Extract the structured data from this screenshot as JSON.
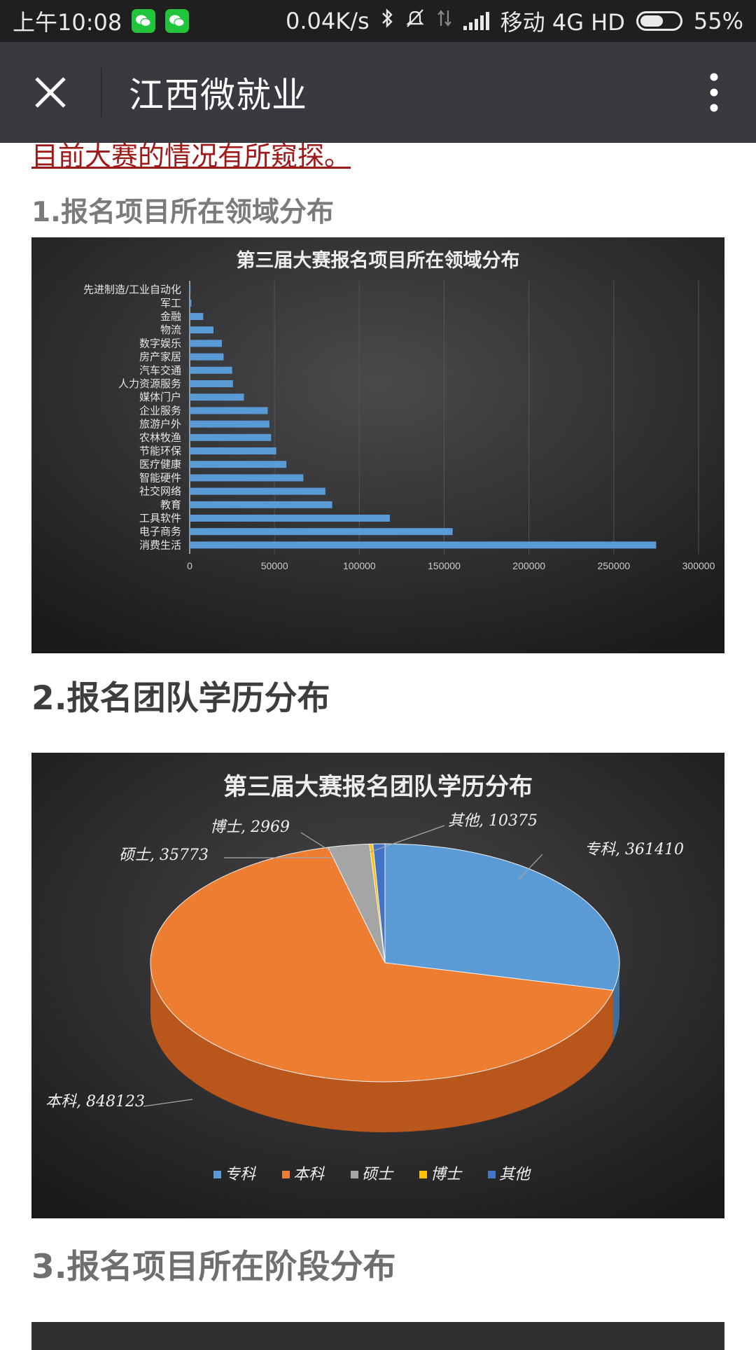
{
  "status_bar": {
    "time": "上午10:08",
    "network_speed": "0.04K/s",
    "carrier": "移动 4G HD",
    "battery": "55%"
  },
  "title_bar": {
    "title": "江西微就业"
  },
  "article": {
    "prev_link_text": "目前大赛的情况有所窥探。",
    "section1_title": "1.报名项目所在领域分布",
    "section2_title": "2.报名团队学历分布",
    "section3_title": "3.报名项目所在阶段分布"
  },
  "chart_data": [
    {
      "type": "bar",
      "orientation": "horizontal",
      "title": "第三届大赛报名项目所在领域分布",
      "categories": [
        "先进制造/工业自动化",
        "军工",
        "金融",
        "物流",
        "数字娱乐",
        "房产家居",
        "汽车交通",
        "人力资源服务",
        "媒体门户",
        "企业服务",
        "旅游户外",
        "农林牧渔",
        "节能环保",
        "医疗健康",
        "智能硬件",
        "社交网络",
        "教育",
        "工具软件",
        "电子商务",
        "消费生活"
      ],
      "values": [
        500,
        1000,
        8000,
        14000,
        19000,
        20000,
        25000,
        25500,
        32000,
        46000,
        47000,
        48000,
        51000,
        57000,
        67000,
        80000,
        84000,
        118000,
        155000,
        275000
      ],
      "xticks": [
        "0",
        "50000",
        "100000",
        "150000",
        "200000",
        "250000",
        "300000"
      ],
      "xlim": [
        0,
        300000
      ],
      "bar_color": "#5b9bd5",
      "grid": true
    },
    {
      "type": "pie",
      "title": "第三届大赛报名团队学历分布",
      "labels": [
        "专科",
        "本科",
        "硕士",
        "博士",
        "其他"
      ],
      "values": [
        361410,
        848123,
        35773,
        2969,
        10375
      ],
      "data_labels": [
        "专科, 361410",
        "本科, 848123",
        "硕士, 35773",
        "博士, 2969",
        "其他, 10375"
      ],
      "colors": [
        "#5b9bd5",
        "#ed7d31",
        "#a5a5a5",
        "#ffc000",
        "#4472c4"
      ],
      "legend": "bottom"
    }
  ]
}
